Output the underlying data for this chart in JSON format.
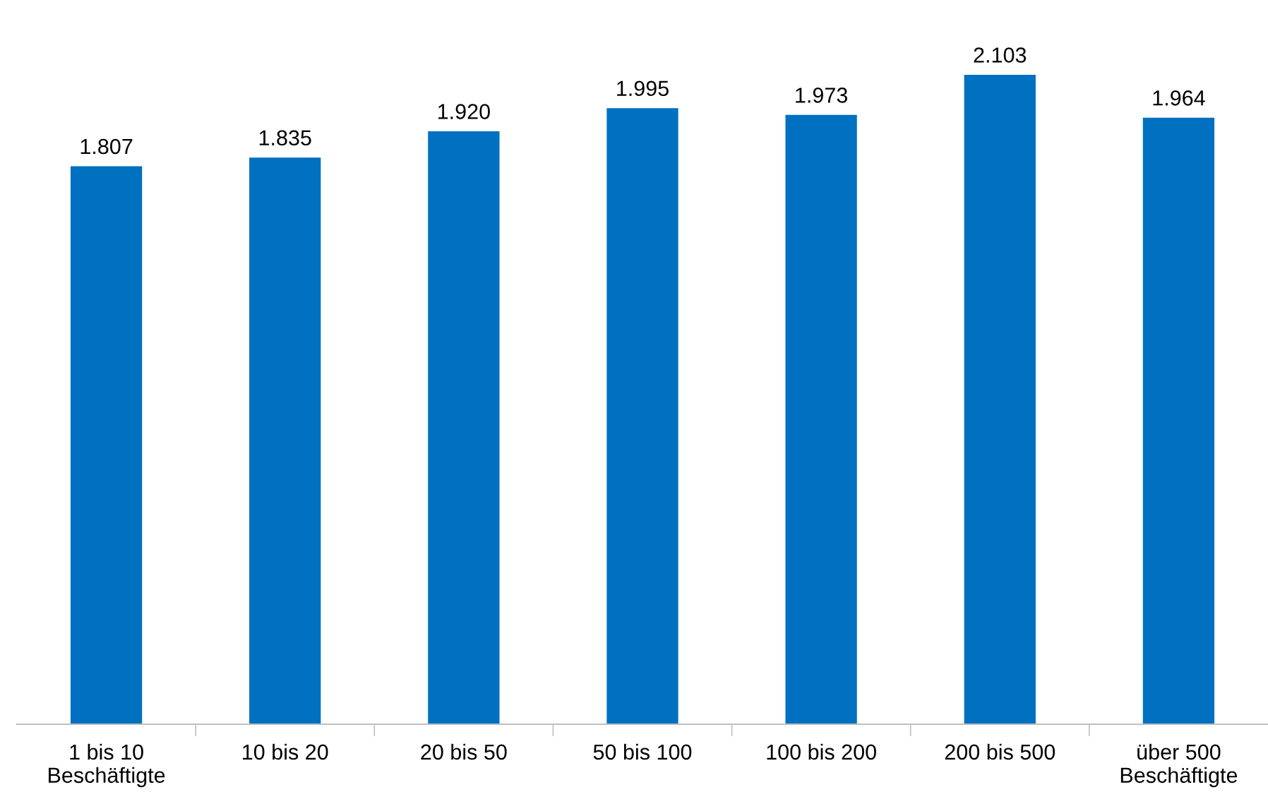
{
  "chart_data": {
    "type": "bar",
    "categories": [
      "1 bis 10\nBeschäftigte",
      "10 bis 20",
      "20 bis 50",
      "50 bis 100",
      "100 bis 200",
      "200 bis 500",
      "über 500\nBeschäftigte"
    ],
    "values": [
      1807,
      1835,
      1920,
      1995,
      1973,
      2103,
      1964
    ],
    "value_labels": [
      "1.807",
      "1.835",
      "1.920",
      "1.995",
      "1.973",
      "2.103",
      "1.964"
    ],
    "color": "#0070c0",
    "tick_labels": "x",
    "grid": false,
    "legend": false
  }
}
